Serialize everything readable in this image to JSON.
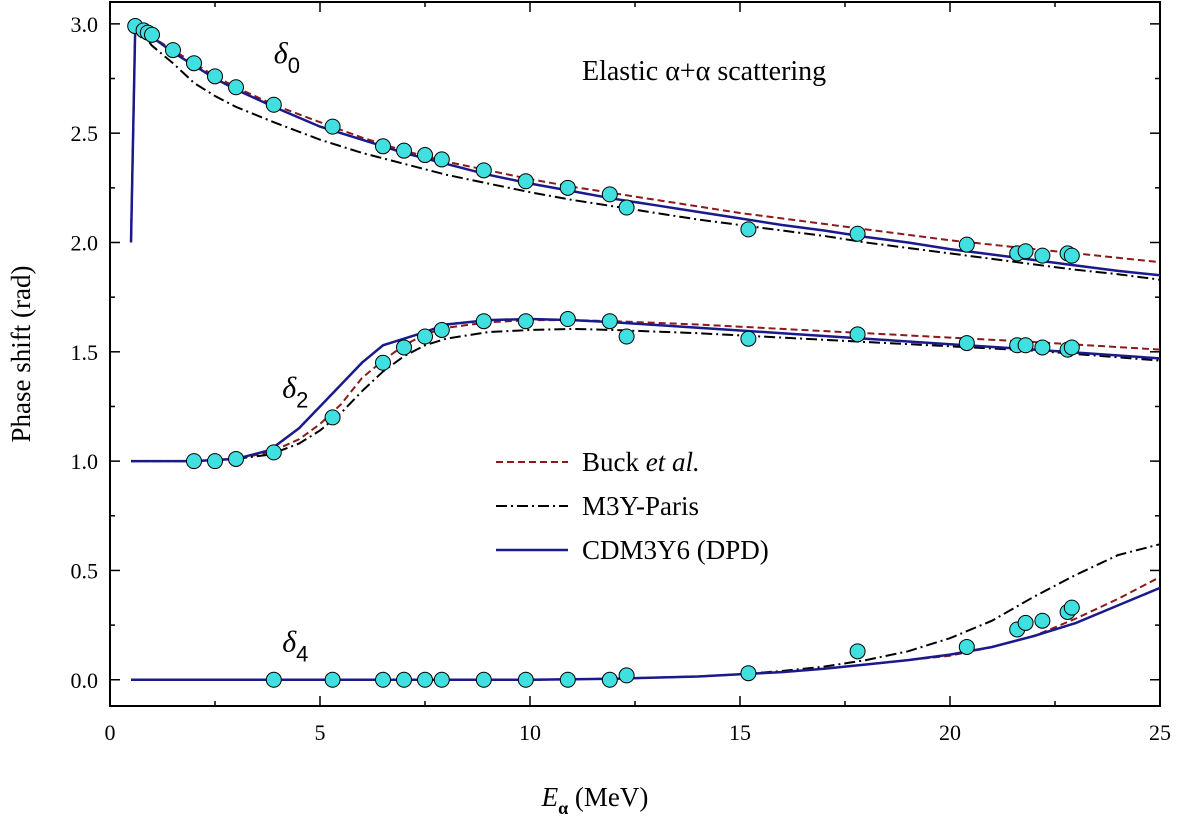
{
  "chart_data": {
    "type": "line",
    "title": "Elastic α+α scattering",
    "xlabel": "E",
    "xlabel_sub": "α",
    "xlabel_unit": " (MeV)",
    "ylabel": "Phase shift (rad)",
    "xlim": [
      0,
      25
    ],
    "ylim": [
      -0.12,
      3.1
    ],
    "x_ticks": [
      "0",
      "5",
      "10",
      "15",
      "20",
      "25"
    ],
    "y_ticks": [
      "0.0",
      "0.5",
      "1.0",
      "1.5",
      "2.0",
      "2.5",
      "3.0"
    ],
    "grid": false,
    "legend_position": "center",
    "annotations": [
      {
        "symbol": "δ",
        "sub": "0",
        "x": 3.9,
        "y": 2.82
      },
      {
        "symbol": "δ",
        "sub": "2",
        "x": 4.1,
        "y": 1.29
      },
      {
        "symbol": "δ",
        "sub": "4",
        "x": 4.1,
        "y": 0.13
      }
    ],
    "series": [
      {
        "name": "Buck et al.",
        "name_plain": "Buck ",
        "name_italic": "et al.",
        "style": "dashed",
        "color": "#8b1a1a",
        "curves": [
          {
            "x": [
              0.5,
              0.6,
              0.8,
              1.0,
              1.5,
              2.0,
              2.5,
              3.0,
              3.9,
              5.0,
              6.0,
              7.0,
              8.0,
              9.0,
              10.0,
              11.0,
              12.0,
              13.0,
              14.0,
              15.0,
              16.0,
              17.0,
              18.0,
              19.0,
              20.0,
              21.0,
              22.0,
              23.0,
              24.0,
              25.0
            ],
            "y": [
              2.0,
              2.98,
              2.97,
              2.94,
              2.88,
              2.82,
              2.76,
              2.71,
              2.63,
              2.55,
              2.48,
              2.42,
              2.37,
              2.33,
              2.29,
              2.255,
              2.225,
              2.195,
              2.165,
              2.135,
              2.11,
              2.085,
              2.06,
              2.035,
              2.01,
              1.99,
              1.97,
              1.95,
              1.93,
              1.91
            ]
          },
          {
            "x": [
              0.5,
              2.0,
              3.0,
              3.8,
              4.5,
              5.0,
              5.5,
              6.0,
              6.5,
              7.0,
              7.5,
              8.0,
              9.0,
              10.0,
              11.0,
              12.0,
              14.0,
              16.0,
              18.0,
              20.0,
              22.0,
              25.0
            ],
            "y": [
              1.0,
              1.0,
              1.01,
              1.04,
              1.1,
              1.17,
              1.26,
              1.38,
              1.46,
              1.53,
              1.58,
              1.61,
              1.635,
              1.645,
              1.645,
              1.64,
              1.625,
              1.605,
              1.585,
              1.565,
              1.545,
              1.51
            ]
          },
          {
            "x": [
              0.5,
              5.0,
              10.0,
              12.0,
              14.0,
              15.0,
              16.0,
              17.0,
              18.0,
              19.0,
              20.0,
              21.0,
              22.0,
              23.0,
              24.0,
              25.0
            ],
            "y": [
              0.0,
              0.0,
              0.0,
              0.005,
              0.015,
              0.025,
              0.035,
              0.05,
              0.07,
              0.09,
              0.11,
              0.15,
              0.2,
              0.28,
              0.37,
              0.47
            ]
          }
        ]
      },
      {
        "name": "M3Y-Paris",
        "style": "dashdot",
        "color": "#000000",
        "curves": [
          {
            "x": [
              0.5,
              0.6,
              0.8,
              1.0,
              1.5,
              2.0,
              2.5,
              3.0,
              3.9,
              5.0,
              6.0,
              7.0,
              8.0,
              9.0,
              10.0,
              11.0,
              12.0,
              13.0,
              14.0,
              15.0,
              16.0,
              17.0,
              18.0,
              19.0,
              20.0,
              21.0,
              22.0,
              23.0,
              24.0,
              25.0
            ],
            "y": [
              2.0,
              2.97,
              2.95,
              2.9,
              2.82,
              2.73,
              2.67,
              2.62,
              2.55,
              2.47,
              2.41,
              2.36,
              2.31,
              2.27,
              2.23,
              2.195,
              2.165,
              2.135,
              2.105,
              2.08,
              2.055,
              2.03,
              2.0,
              1.975,
              1.95,
              1.925,
              1.9,
              1.875,
              1.855,
              1.83
            ]
          },
          {
            "x": [
              0.5,
              2.0,
              3.0,
              3.8,
              4.5,
              5.0,
              5.5,
              6.0,
              6.5,
              7.0,
              7.5,
              8.0,
              9.0,
              10.0,
              11.0,
              12.0,
              14.0,
              16.0,
              18.0,
              20.0,
              22.0,
              25.0
            ],
            "y": [
              1.0,
              1.0,
              1.01,
              1.03,
              1.08,
              1.14,
              1.22,
              1.32,
              1.41,
              1.48,
              1.53,
              1.56,
              1.59,
              1.6,
              1.605,
              1.6,
              1.585,
              1.565,
              1.545,
              1.525,
              1.505,
              1.46
            ]
          },
          {
            "x": [
              0.5,
              5.0,
              10.0,
              12.0,
              14.0,
              15.0,
              16.0,
              17.0,
              18.0,
              19.0,
              20.0,
              21.0,
              22.0,
              23.0,
              24.0,
              25.0
            ],
            "y": [
              0.0,
              0.0,
              0.0,
              0.005,
              0.015,
              0.025,
              0.04,
              0.06,
              0.09,
              0.13,
              0.19,
              0.27,
              0.38,
              0.48,
              0.57,
              0.62
            ]
          }
        ]
      },
      {
        "name": "CDM3Y6 (DPD)",
        "style": "solid",
        "color": "#1a1a8c",
        "curves": [
          {
            "x": [
              0.5,
              0.6,
              0.8,
              1.0,
              1.5,
              2.0,
              2.5,
              3.0,
              3.9,
              5.0,
              6.0,
              7.0,
              8.0,
              9.0,
              10.0,
              11.0,
              12.0,
              13.0,
              14.0,
              15.0,
              16.0,
              17.0,
              18.0,
              19.0,
              20.0,
              21.0,
              22.0,
              23.0,
              24.0,
              25.0
            ],
            "y": [
              2.0,
              2.98,
              2.97,
              2.94,
              2.87,
              2.81,
              2.75,
              2.7,
              2.62,
              2.53,
              2.47,
              2.41,
              2.36,
              2.31,
              2.27,
              2.235,
              2.2,
              2.17,
              2.14,
              2.11,
              2.08,
              2.055,
              2.025,
              2.0,
              1.97,
              1.945,
              1.92,
              1.895,
              1.87,
              1.85
            ]
          },
          {
            "x": [
              0.5,
              2.0,
              3.0,
              3.8,
              4.5,
              5.0,
              5.5,
              6.0,
              6.5,
              7.0,
              7.5,
              8.0,
              9.0,
              10.0,
              11.0,
              12.0,
              14.0,
              16.0,
              18.0,
              20.0,
              22.0,
              25.0
            ],
            "y": [
              1.0,
              1.0,
              1.01,
              1.05,
              1.15,
              1.25,
              1.35,
              1.45,
              1.53,
              1.56,
              1.59,
              1.625,
              1.645,
              1.65,
              1.645,
              1.635,
              1.61,
              1.585,
              1.56,
              1.535,
              1.51,
              1.47
            ]
          },
          {
            "x": [
              0.5,
              5.0,
              10.0,
              12.0,
              14.0,
              15.0,
              16.0,
              17.0,
              18.0,
              19.0,
              20.0,
              21.0,
              22.0,
              23.0,
              24.0,
              25.0
            ],
            "y": [
              0.0,
              0.0,
              0.0,
              0.005,
              0.015,
              0.025,
              0.035,
              0.05,
              0.07,
              0.09,
              0.115,
              0.15,
              0.2,
              0.26,
              0.34,
              0.42
            ]
          }
        ]
      }
    ],
    "points": {
      "marker": "circle",
      "color": "#40e0e0",
      "x": [
        0.6,
        0.8,
        0.9,
        1.0,
        1.5,
        2.0,
        2.5,
        3.0,
        3.9,
        5.3,
        6.5,
        7.0,
        7.5,
        7.9,
        8.9,
        9.9,
        10.9,
        11.9,
        12.3,
        15.2,
        17.8,
        20.4,
        21.6,
        21.8,
        22.2,
        22.8,
        22.9,
        2.0,
        2.5,
        3.0,
        3.9,
        5.3,
        6.5,
        7.0,
        7.5,
        7.9,
        8.9,
        9.9,
        10.9,
        11.9,
        12.3,
        15.2,
        17.8,
        20.4,
        21.6,
        21.8,
        22.2,
        22.8,
        22.9,
        3.9,
        5.3,
        6.5,
        7.0,
        7.5,
        7.9,
        8.9,
        9.9,
        10.9,
        11.9,
        12.3,
        15.2,
        17.8,
        20.4,
        21.6,
        21.8,
        22.2,
        22.8,
        22.9
      ],
      "y": [
        2.99,
        2.97,
        2.96,
        2.95,
        2.88,
        2.82,
        2.76,
        2.71,
        2.63,
        2.53,
        2.44,
        2.42,
        2.4,
        2.38,
        2.33,
        2.28,
        2.25,
        2.22,
        2.16,
        2.06,
        2.04,
        1.99,
        1.95,
        1.96,
        1.94,
        1.95,
        1.94,
        1.0,
        1.0,
        1.01,
        1.04,
        1.2,
        1.45,
        1.52,
        1.57,
        1.6,
        1.64,
        1.64,
        1.65,
        1.64,
        1.57,
        1.56,
        1.58,
        1.54,
        1.53,
        1.53,
        1.52,
        1.51,
        1.52,
        0.0,
        0.0,
        0.0,
        0.0,
        0.0,
        0.0,
        0.0,
        0.0,
        0.0,
        0.0,
        0.02,
        0.03,
        0.13,
        0.15,
        0.23,
        0.26,
        0.27,
        0.31,
        0.33
      ]
    }
  }
}
